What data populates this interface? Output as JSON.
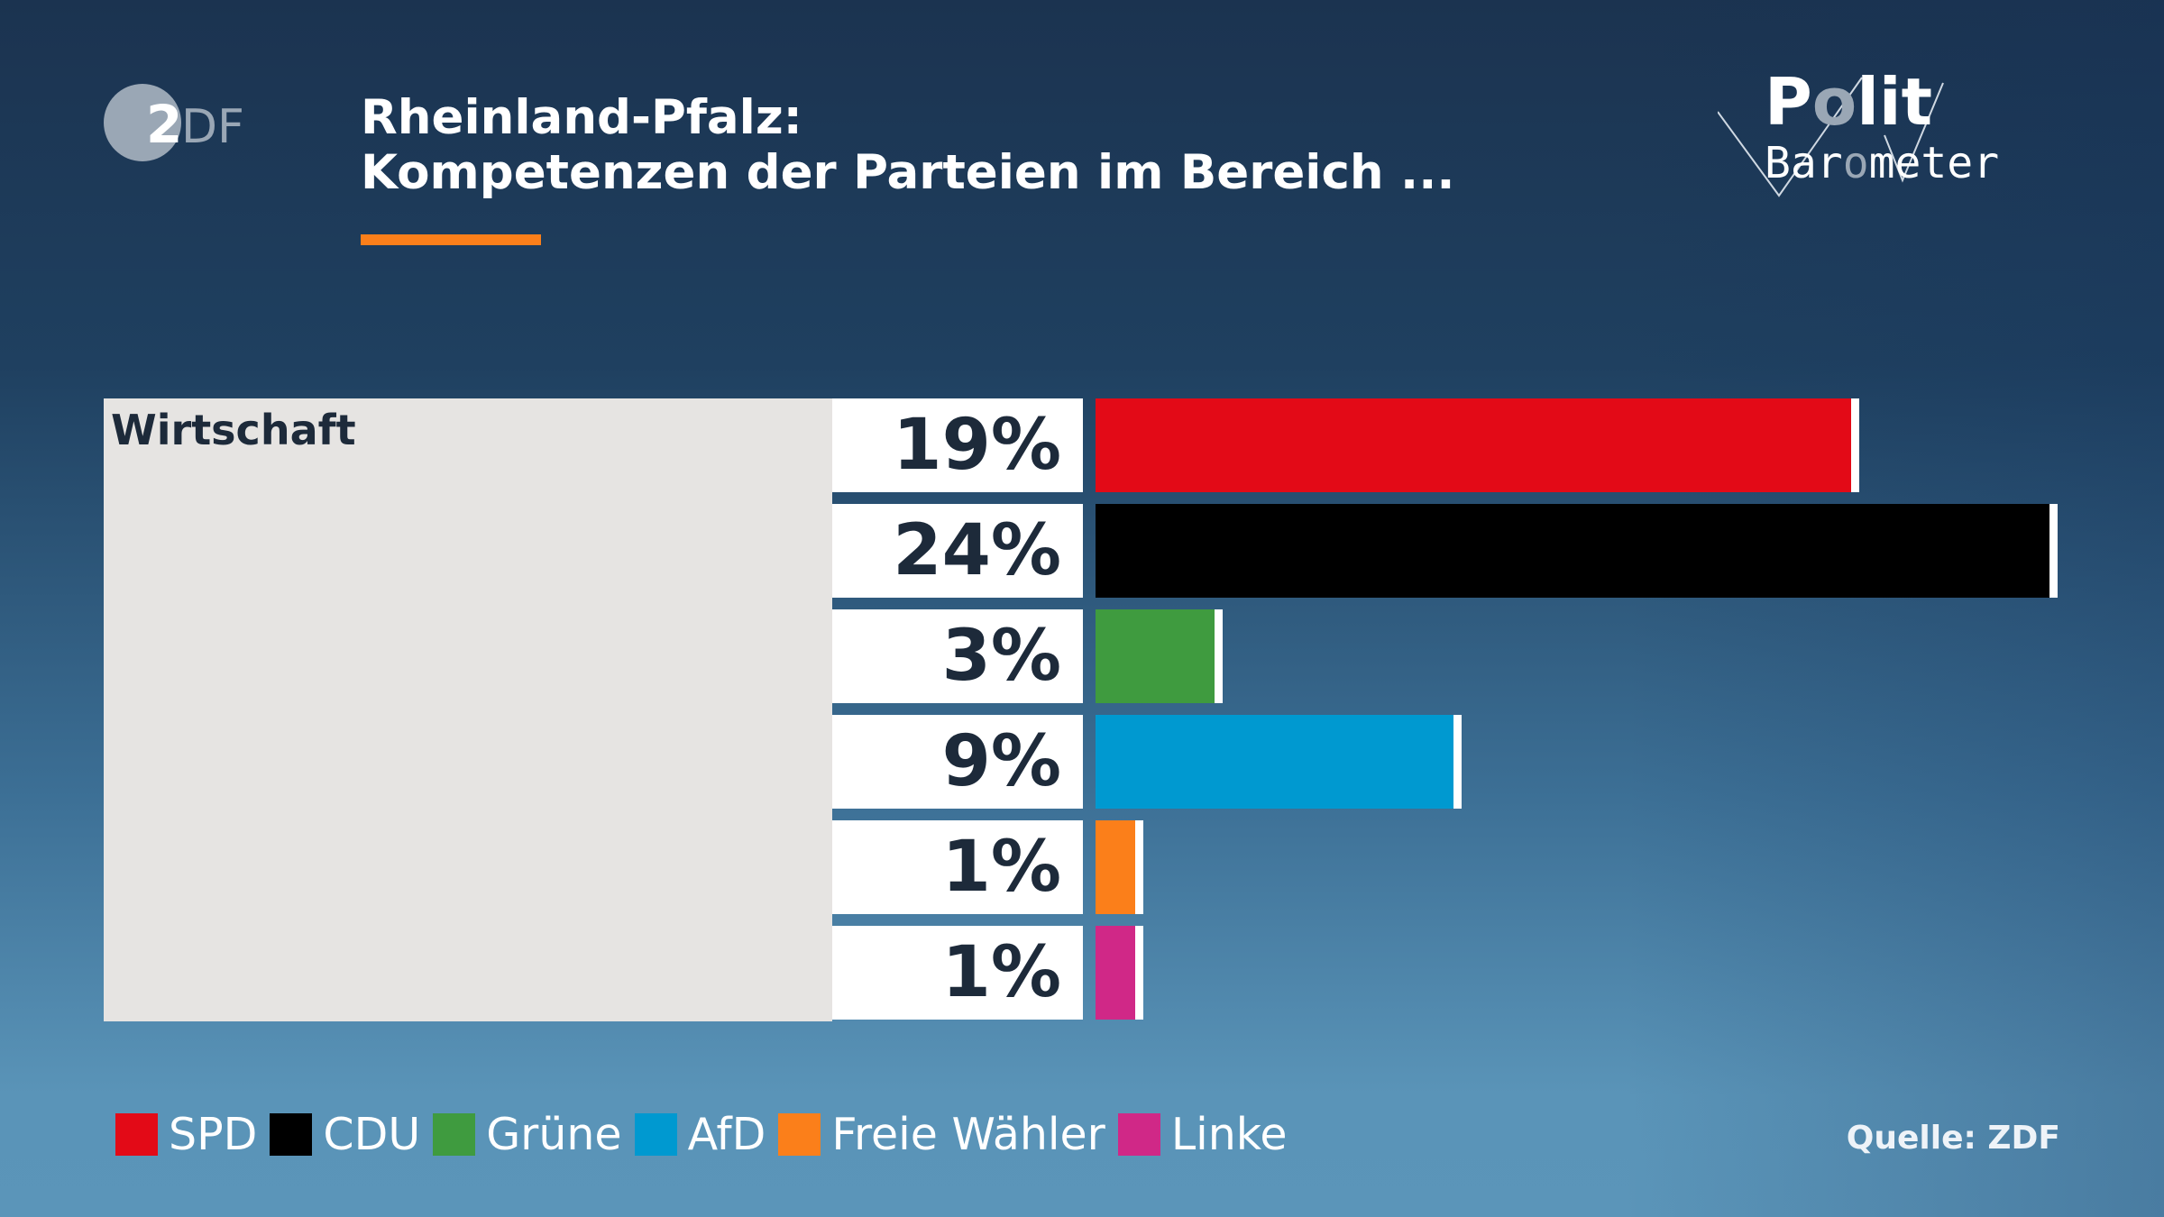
{
  "header": {
    "logo": "ZDF",
    "title_line1": "Rheinland-Pfalz:",
    "title_line2": "Kompetenzen der Parteien im Bereich ...",
    "brand_logo": "Polit Barometer"
  },
  "chart_data": {
    "type": "bar",
    "orientation": "horizontal",
    "category": "Wirtschaft",
    "categories": [
      "SPD",
      "CDU",
      "Grüne",
      "AfD",
      "Freie Wähler",
      "Linke"
    ],
    "values": [
      19,
      24,
      3,
      9,
      1,
      1
    ],
    "labels": [
      "19%",
      "24%",
      "3%",
      "9%",
      "1%",
      "1%"
    ],
    "unit": "%",
    "colors": [
      "#e30a17",
      "#000000",
      "#3f9b3f",
      "#0099d0",
      "#fb7f1a",
      "#d02887"
    ],
    "legend": "bottom-left",
    "grid": false
  },
  "legend": [
    "SPD",
    "CDU",
    "Grüne",
    "AfD",
    "Freie Wähler",
    "Linke"
  ],
  "footer": {
    "source": "Quelle: ZDF"
  }
}
